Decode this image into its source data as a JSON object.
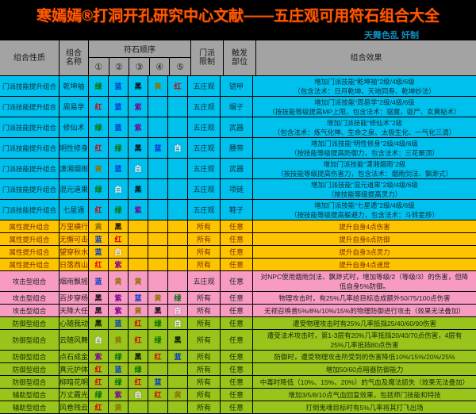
{
  "title": "寒嫣嫣®打洞开孔研究中心文献——五庄观可用符石组合大全",
  "credit": "天舞色乱 奸制",
  "colors": {
    "page_bg": "#000000",
    "title": "#ff5a00",
    "credit": "#1090c0",
    "header_bg": "#a3a3a3",
    "cyan": "#00c0ee",
    "yellow": "#ffc400",
    "pink": "#f79bc3",
    "green": "#99c41c",
    "border": "#000000"
  },
  "rune_colors": {
    "红": "#d80000",
    "绿": "#006e00",
    "蓝": "#0038c8",
    "黄": "#8a7400",
    "黑": "#000000",
    "紫": "#7a0090",
    "白": "#ffffff"
  },
  "header": {
    "category": "组合性质",
    "name": "组合\n名称",
    "rune_order": "符石顺序",
    "circles": [
      "①",
      "②",
      "③",
      "④",
      "⑤"
    ],
    "school": "门派\n限制",
    "slot": "触发\n部位",
    "effect": "组合效果"
  },
  "rows": [
    {
      "type": "cyan",
      "category": "门派技能提升组合",
      "name": "乾坤袖",
      "runes": [
        "绿",
        "蓝",
        "黑",
        "黄",
        "红"
      ],
      "school": "五庄观",
      "slot": "铠甲",
      "effect": [
        "增加门派技能“乾坤袖”2级/4级/6级",
        "（包含法术：日月乾坤、天地同寿、乾坤妙法）"
      ]
    },
    {
      "type": "cyan",
      "category": "门派技能提升组合",
      "name": "周易学",
      "runes": [
        "红",
        "蓝",
        "紫",
        "",
        ""
      ],
      "school": "五庄观",
      "slot": "帽子",
      "effect": [
        "增加门派技能“周易学”2级/4级/6级",
        "（按技能等级提高MP上限，包含法术：驱魔，驱尸、玄黄秘术）"
      ]
    },
    {
      "type": "cyan",
      "category": "门派技能提升组合",
      "name": "修仙术",
      "runes": [
        "绿",
        "蓝",
        "紫",
        "",
        ""
      ],
      "school": "五庄观",
      "slot": "武器",
      "effect": [
        "增加门派技能“修仙术”2级",
        "（包含法术：炼气化神、生命之泉、太极生化、一气化三清）"
      ]
    },
    {
      "type": "cyan",
      "category": "门派技能提升组合",
      "name": "明性修身",
      "runes": [
        "红",
        "绿",
        "黑",
        "蓝",
        "白"
      ],
      "school": "五庄观",
      "slot": "腰带",
      "effect": [
        "增加门派技能“明性修身”2级/4级/6级",
        "（按技能等级提高防御力，包含法术：三花聚顶）"
      ]
    },
    {
      "type": "cyan",
      "category": "门派技能提升组合",
      "name": "潇湘烟雨",
      "runes": [
        "黄",
        "蓝",
        "白",
        "",
        ""
      ],
      "school": "五庄观",
      "slot": "武器",
      "effect": [
        "增加门派技能“潇湘烟雨”2级",
        "（按技能等级提高伤害力，包含法术：烟雨剑法、飘渺式）"
      ]
    },
    {
      "type": "cyan",
      "category": "门派技能提升组合",
      "name": "混元道果",
      "runes": [
        "绿",
        "白",
        "黑",
        "",
        ""
      ],
      "school": "五庄观",
      "slot": "项链",
      "effect": [
        "增加门派技能“混元道果”2级/4级/6级",
        "（按技能等级提高灵力）"
      ]
    },
    {
      "type": "cyan",
      "category": "门派技能提升组合",
      "name": "七星遁",
      "runes": [
        "红",
        "绿",
        "紫",
        "",
        ""
      ],
      "school": "五庄观",
      "slot": "鞋子",
      "effect": [
        "增加门派技能“七星遁”2级/4级/6级",
        "（按技能等级提高躲避力，包含法术：斗转星移）"
      ]
    },
    {
      "type": "yellow",
      "category": "属性提升组合",
      "name": "万里横行",
      "runes": [
        "黄",
        "黑",
        "",
        "",
        ""
      ],
      "school": "所有",
      "slot": "任意",
      "effect": [
        "提升自身4点伤害"
      ]
    },
    {
      "type": "yellow",
      "category": "属性提升组合",
      "name": "无懈可击",
      "runes": [
        "蓝",
        "红",
        "",
        "",
        ""
      ],
      "school": "所有",
      "slot": "任意",
      "effect": [
        "提升自身6点防御"
      ]
    },
    {
      "type": "yellow",
      "category": "属性提升组合",
      "name": "望穿秋水",
      "runes": [
        "蓝",
        "白",
        "",
        "",
        ""
      ],
      "school": "所有",
      "slot": "任意",
      "effect": [
        "提升自身3点灵力"
      ]
    },
    {
      "type": "yellow",
      "category": "属性提升组合",
      "name": "日落西山",
      "runes": [
        "红",
        "紫",
        "",
        "",
        ""
      ],
      "school": "所有",
      "slot": "任意",
      "effect": [
        "提升自身4点速度"
      ]
    },
    {
      "type": "pink",
      "category": "攻击型组合",
      "name": "烟雨飘摇",
      "runes": [
        "蓝",
        "黄",
        "黄",
        "",
        ""
      ],
      "school": "五庄观",
      "slot": "任意",
      "effect": [
        "对NPC使用烟雨剑法、飘渺式时，增加等级/2（等级/3）的伤害，但降",
        "低自身5%防御。"
      ]
    },
    {
      "type": "pink",
      "category": "攻击型组合",
      "name": "百步穿杨",
      "runes": [
        "黑",
        "紫",
        "蓝",
        "黄",
        "绿"
      ],
      "school": "所有",
      "slot": "任意",
      "effect": [
        "物理攻击时，有25%几率给目标造成额外50/75/100点伤害"
      ]
    },
    {
      "type": "pink",
      "category": "攻击型组合",
      "name": "天降大任",
      "runes": [
        "黑",
        "紫",
        "黄",
        "黑",
        "白"
      ],
      "school": "所有",
      "slot": "任意",
      "effect": [
        "无视召唤兽5%/8%/10%/15%的物理防御进行攻击（效果无法叠加）"
      ]
    },
    {
      "type": "green",
      "category": "防御型组合",
      "name": "心随我动",
      "runes": [
        "黑",
        "蓝",
        "红",
        "绿",
        "白"
      ],
      "school": "所有",
      "slot": "任意",
      "effect": [
        "遭受物理攻击时有25%几率抵挡25/40/60/90伤害"
      ]
    },
    {
      "type": "green",
      "category": "防御型组合",
      "name": "云随风舞",
      "runes": [
        "白",
        "黄",
        "红",
        "绿",
        "黑"
      ],
      "school": "所有",
      "slot": "任意",
      "effect": [
        "遭受法术攻击时，第1-3层有20%几率抵挡20/40/70点伤害，4层有",
        "25%几率抵挡80点伤害"
      ]
    },
    {
      "type": "green",
      "category": "防御型组合",
      "name": "点石成金",
      "runes": [
        "紫",
        "绿",
        "黑",
        "红",
        "蓝"
      ],
      "school": "所有",
      "slot": "任意",
      "effect": [
        "防御时，遭受物理攻击所受到的伤害降低10%/15%/20%/25%"
      ]
    },
    {
      "type": "green",
      "category": "防御型组合",
      "name": "真元护体",
      "runes": [
        "红",
        "蓝",
        "绿",
        "",
        ""
      ],
      "school": "所有",
      "slot": "任意",
      "effect": [
        "增加50/60点暗器防御能力"
      ]
    },
    {
      "type": "green",
      "category": "防御型组合",
      "name": "柳暗花明",
      "runes": [
        "红",
        "绿",
        "红",
        "蓝",
        ""
      ],
      "school": "所有",
      "slot": "任意",
      "effect": [
        "中毒时降低（10%、15%、20%）的气血及魔法损失（效果无法叠加）"
      ]
    },
    {
      "type": "green",
      "category": "辅助型组合",
      "name": "万丈霞光",
      "runes": [
        "绿",
        "紫",
        "白",
        "红",
        "黄"
      ],
      "school": "所有",
      "slot": "任意",
      "effect": [
        "增加3/5/8/10点气血回复效果，包括师门技能和特技"
      ]
    },
    {
      "type": "green",
      "category": "辅助型组合",
      "name": "风卷残云",
      "runes": [
        "红",
        "黄",
        "",
        "",
        ""
      ],
      "school": "所有",
      "slot": "任意",
      "effect": [
        "打倒鬼魂目标时有5%几率将其打飞出场"
      ]
    }
  ]
}
